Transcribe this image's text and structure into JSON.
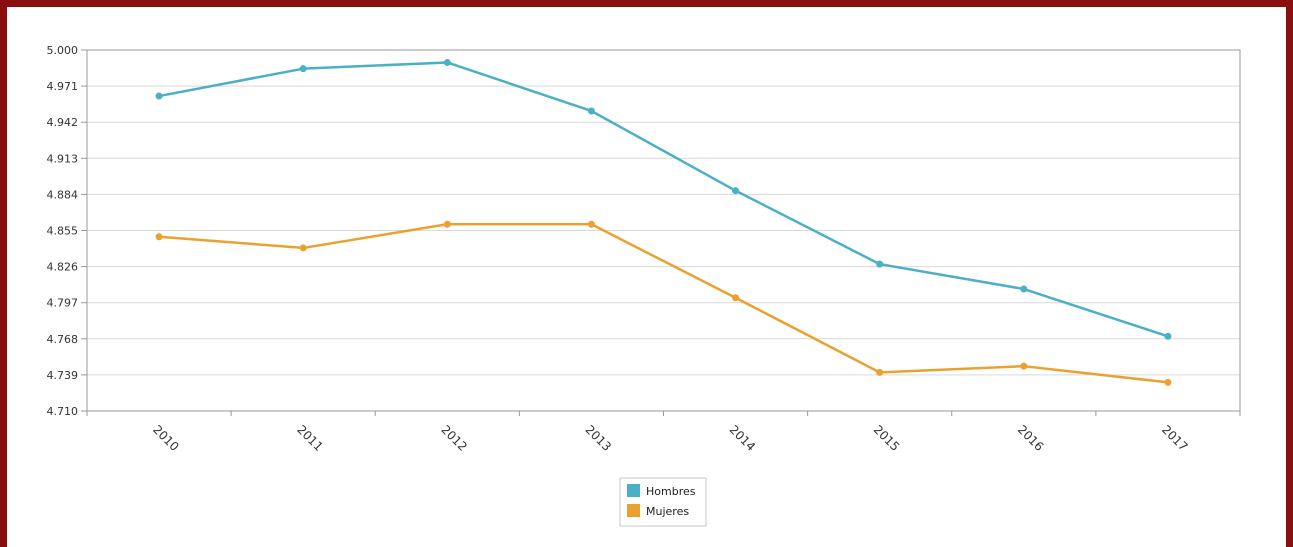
{
  "colors": {
    "frame": "#8b0e0e",
    "hombres": "#4bb0c6",
    "mujeres": "#eba130",
    "grid": "#d9d9d9",
    "axis": "#9a9a9a"
  },
  "chart_data": {
    "type": "line",
    "title": "",
    "xlabel": "",
    "ylabel": "",
    "categories": [
      "2010",
      "2011",
      "2012",
      "2013",
      "2014",
      "2015",
      "2016",
      "2017"
    ],
    "ylim": [
      4.71,
      5.0
    ],
    "yticks": [
      "5.000",
      "4.971",
      "4.942",
      "4.913",
      "4.884",
      "4.855",
      "4.826",
      "4.797",
      "4.768",
      "4.739",
      "4.710"
    ],
    "grid": true,
    "legend_position": "bottom-center",
    "series": [
      {
        "name": "Hombres",
        "color": "#4bb0c6",
        "values": [
          4.963,
          4.985,
          4.99,
          4.951,
          4.887,
          4.828,
          4.808,
          4.77
        ]
      },
      {
        "name": "Mujeres",
        "color": "#eba130",
        "values": [
          4.85,
          4.841,
          4.86,
          4.86,
          4.801,
          4.741,
          4.746,
          4.733
        ]
      }
    ]
  }
}
